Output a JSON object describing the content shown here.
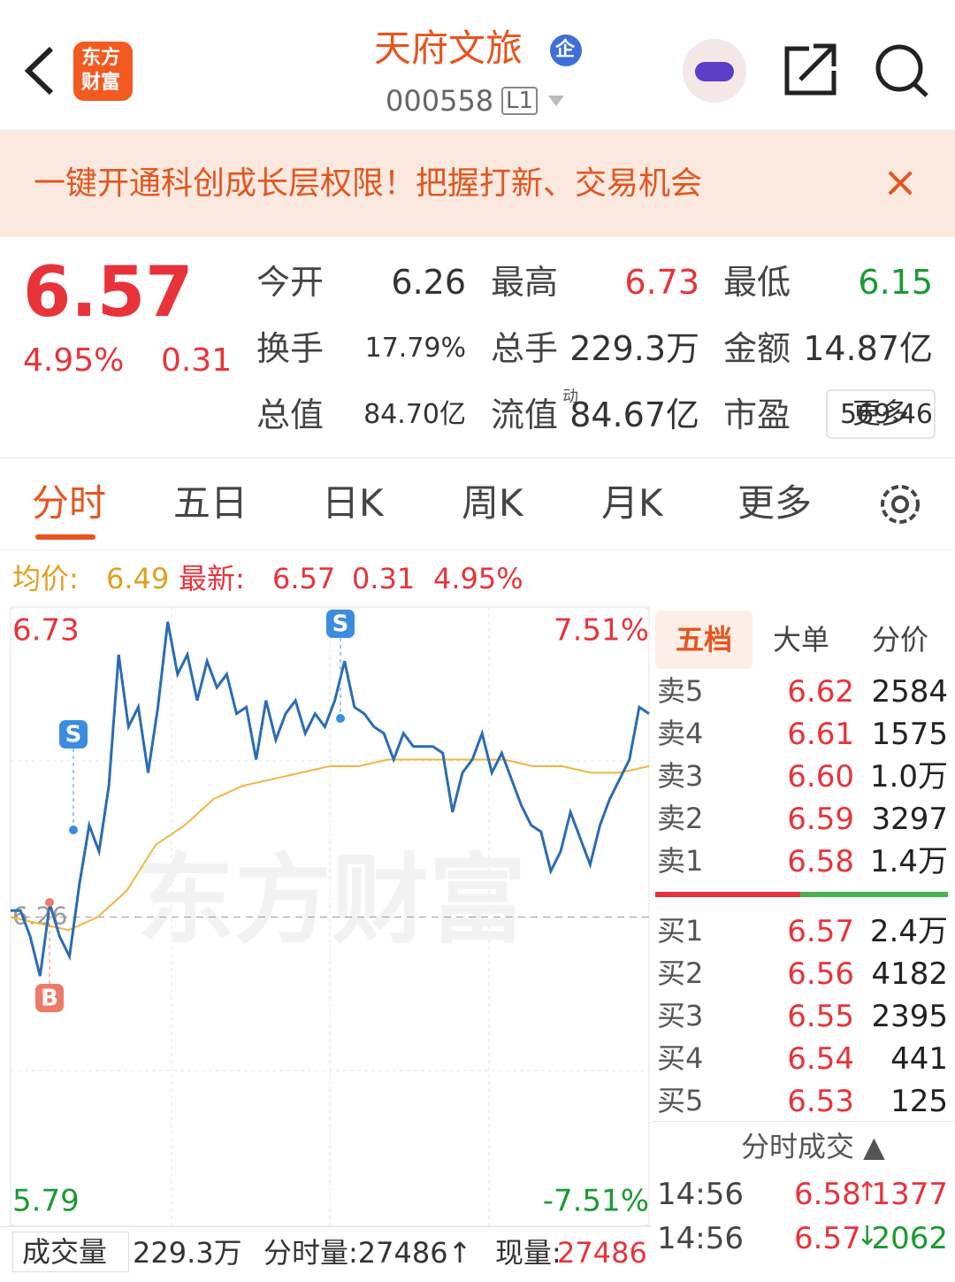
{
  "header": {
    "logo": [
      "东方",
      "财富"
    ],
    "title": "天府文旅",
    "badge": "企",
    "code": "000558",
    "level": "L1"
  },
  "banner": {
    "text": "一键开通科创成长层权限！把握打新、交易机会",
    "close": "×"
  },
  "quote": {
    "price": "6.57",
    "change_pct": "4.95%",
    "change": "0.31",
    "fields": [
      {
        "label": "今开",
        "value": "6.26",
        "color": "#333333"
      },
      {
        "label": "最高",
        "value": "6.73",
        "color": "#e8333a"
      },
      {
        "label": "最低",
        "value": "6.15",
        "color": "#1a9a32"
      },
      {
        "label": "换手",
        "value": "17.79%",
        "color": "#333333"
      },
      {
        "label": "总手",
        "value": "229.3万",
        "color": "#333333"
      },
      {
        "label": "金额",
        "value": "14.87亿",
        "color": "#333333"
      },
      {
        "label": "总值",
        "value": "84.70亿",
        "color": "#333333"
      },
      {
        "label": "流值",
        "value": "84.67亿",
        "color": "#333333"
      },
      {
        "label": "市盈",
        "value": "569.46",
        "color": "#333333"
      }
    ],
    "pe_sup": "动",
    "more": "更多"
  },
  "tabs": [
    "分时",
    "五日",
    "日K",
    "周K",
    "月K",
    "更多"
  ],
  "info": {
    "avg_label": "均价:",
    "avg": "6.49",
    "latest_label": "最新:",
    "latest": "6.57",
    "change": "0.31",
    "change_pct": "4.95%"
  },
  "chart_data": {
    "type": "line",
    "watermark": "东方财富",
    "ylim": [
      5.79,
      6.73
    ],
    "yticks": [
      6.73,
      5.79
    ],
    "y2lim": [
      -7.51,
      7.51
    ],
    "y2ticks": [
      {
        "value": 7.51,
        "label": "7.51%"
      },
      {
        "value": -7.51,
        "label": "-7.51%"
      }
    ],
    "base": 6.26,
    "series": [
      {
        "name": "最新",
        "color": "#2a6cb4",
        "values": [
          6.27,
          6.27,
          6.23,
          6.17,
          6.28,
          6.23,
          6.2,
          6.31,
          6.4,
          6.36,
          6.46,
          6.66,
          6.55,
          6.58,
          6.48,
          6.58,
          6.71,
          6.63,
          6.66,
          6.59,
          6.65,
          6.61,
          6.63,
          6.57,
          6.58,
          6.5,
          6.59,
          6.53,
          6.57,
          6.59,
          6.54,
          6.57,
          6.55,
          6.59,
          6.65,
          6.58,
          6.57,
          6.55,
          6.54,
          6.5,
          6.54,
          6.52,
          6.52,
          6.52,
          6.51,
          6.42,
          6.48,
          6.5,
          6.54,
          6.48,
          6.51,
          6.47,
          6.43,
          6.4,
          6.39,
          6.33,
          6.36,
          6.42,
          6.38,
          6.34,
          6.4,
          6.44,
          6.47,
          6.5,
          6.58,
          6.57
        ]
      },
      {
        "name": "均价",
        "color": "#f2b540",
        "values": [
          6.26,
          6.25,
          6.24,
          6.26,
          6.3,
          6.37,
          6.4,
          6.44,
          6.46,
          6.47,
          6.48,
          6.49,
          6.49,
          6.5,
          6.5,
          6.5,
          6.5,
          6.5,
          6.49,
          6.49,
          6.48,
          6.48,
          6.49
        ]
      }
    ],
    "trade_marks": [
      "S",
      "S",
      "B"
    ]
  },
  "volume_bar": {
    "selector": "成交量",
    "total": "229.3万",
    "minute": "分时量:27486↑",
    "current_label": "现量:",
    "current": "27486"
  },
  "order_panel": {
    "tabs": [
      "五档",
      "大单",
      "分价"
    ],
    "sell": [
      {
        "label": "卖5",
        "price": "6.62",
        "volume": "2584"
      },
      {
        "label": "卖4",
        "price": "6.61",
        "volume": "1575"
      },
      {
        "label": "卖3",
        "price": "6.60",
        "volume": "1.0万"
      },
      {
        "label": "卖2",
        "price": "6.59",
        "volume": "3297"
      },
      {
        "label": "卖1",
        "price": "6.58",
        "volume": "1.4万"
      }
    ],
    "buy": [
      {
        "label": "买1",
        "price": "6.57",
        "volume": "2.4万"
      },
      {
        "label": "买2",
        "price": "6.56",
        "volume": "4182"
      },
      {
        "label": "买3",
        "price": "6.55",
        "volume": "2395"
      },
      {
        "label": "买4",
        "price": "6.54",
        "volume": "441"
      },
      {
        "label": "买5",
        "price": "6.53",
        "volume": "125"
      }
    ],
    "trades_title": "分时成交 ▲",
    "trades": [
      {
        "time": "14:56",
        "price": "6.58",
        "dir": "↑",
        "volume": "1377",
        "color": "#e8333a"
      },
      {
        "time": "14:56",
        "price": "6.57",
        "dir": "↓",
        "volume": "2062",
        "color": "#1a9a32"
      }
    ]
  }
}
